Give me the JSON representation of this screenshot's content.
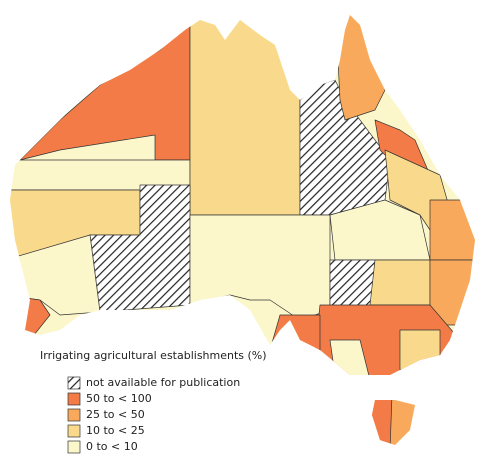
{
  "legend": {
    "title": "Irrigating agricultural establishments (%)",
    "items": [
      {
        "label": "not available for publication",
        "pattern": "hatch"
      },
      {
        "label": "50 to < 100",
        "color": "#f27b47"
      },
      {
        "label": "25 to < 50",
        "color": "#f8a95c"
      },
      {
        "label": "10 to < 25",
        "color": "#f9da8c"
      },
      {
        "label": "0 to < 10",
        "color": "#fbf7cb"
      }
    ]
  }
}
